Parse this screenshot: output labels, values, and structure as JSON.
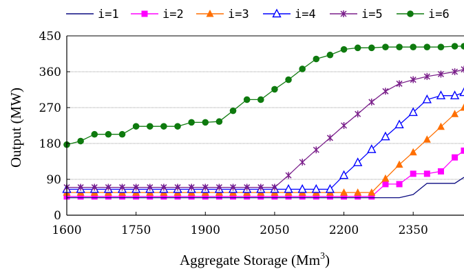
{
  "chart_data": {
    "type": "line",
    "xlabel": "Aggregate Storage (Mm",
    "xlabel_sup": "3",
    "xlabel_close": ")",
    "ylabel": "Output (MW)",
    "xlim": [
      1600,
      2460
    ],
    "ylim": [
      0,
      450
    ],
    "xticks": [
      1600,
      1750,
      1900,
      2050,
      2200,
      2350
    ],
    "yticks": [
      0,
      90,
      180,
      270,
      360,
      450
    ],
    "grid": "horizontal",
    "legend_position": "top",
    "x": [
      1600,
      1630,
      1660,
      1690,
      1720,
      1750,
      1780,
      1810,
      1840,
      1870,
      1900,
      1930,
      1960,
      1990,
      2020,
      2050,
      2080,
      2110,
      2140,
      2170,
      2200,
      2230,
      2260,
      2290,
      2320,
      2350,
      2380,
      2410,
      2440,
      2460
    ],
    "series": [
      {
        "name": "i=1",
        "color": "#0a0a80",
        "marker": "none",
        "values": [
          44,
          44,
          44,
          44,
          44,
          44,
          44,
          44,
          44,
          44,
          44,
          44,
          44,
          44,
          44,
          44,
          44,
          44,
          44,
          44,
          44,
          44,
          44,
          44,
          44,
          52,
          80,
          80,
          80,
          95
        ]
      },
      {
        "name": "i=2",
        "color": "#ff00ff",
        "marker": "square",
        "values": [
          47,
          47,
          47,
          47,
          47,
          47,
          47,
          47,
          47,
          47,
          47,
          47,
          47,
          47,
          47,
          47,
          47,
          47,
          47,
          47,
          47,
          47,
          47,
          78,
          78,
          104,
          104,
          110,
          145,
          162
        ]
      },
      {
        "name": "i=3",
        "color": "#ff6f00",
        "marker": "triangle",
        "values": [
          57,
          57,
          57,
          57,
          57,
          57,
          57,
          57,
          57,
          57,
          57,
          57,
          57,
          57,
          57,
          57,
          57,
          57,
          57,
          57,
          57,
          57,
          57,
          92,
          127,
          158,
          190,
          222,
          254,
          270
        ]
      },
      {
        "name": "i=4",
        "color": "#0000ff",
        "marker": "triangle-open",
        "values": [
          65,
          65,
          65,
          65,
          65,
          65,
          65,
          65,
          65,
          65,
          65,
          65,
          65,
          65,
          65,
          65,
          65,
          65,
          65,
          65,
          100,
          132,
          165,
          197,
          227,
          258,
          290,
          300,
          300,
          308
        ]
      },
      {
        "name": "i=5",
        "color": "#7a1f8a",
        "marker": "star",
        "values": [
          70,
          70,
          70,
          70,
          70,
          70,
          70,
          70,
          70,
          70,
          70,
          70,
          70,
          70,
          70,
          70,
          100,
          133,
          164,
          194,
          225,
          254,
          284,
          311,
          330,
          340,
          348,
          354,
          360,
          366
        ]
      },
      {
        "name": "i=6",
        "color": "#0e7a0e",
        "marker": "circle",
        "values": [
          177,
          186,
          203,
          203,
          203,
          223,
          223,
          223,
          223,
          233,
          233,
          235,
          262,
          290,
          290,
          316,
          340,
          367,
          392,
          402,
          416,
          420,
          420,
          422,
          422,
          422,
          422,
          422,
          424,
          424
        ]
      }
    ]
  }
}
